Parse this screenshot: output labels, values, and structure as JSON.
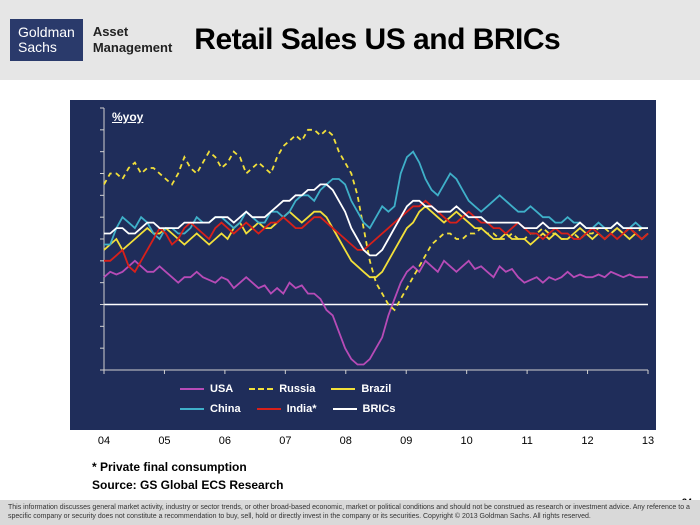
{
  "brand": {
    "logo_line1": "Goldman",
    "logo_line2": "Sachs",
    "subbrand_line1": "Asset",
    "subbrand_line2": "Management"
  },
  "title": "Retail Sales US and BRICs",
  "chart": {
    "type": "line",
    "background_color": "#1f2d5a",
    "unit_label": "%yoy",
    "ylim": [
      -12,
      36
    ],
    "ytick_step": 4,
    "x_categories": [
      "04",
      "05",
      "06",
      "07",
      "08",
      "09",
      "10",
      "11",
      "12",
      "13"
    ],
    "zero_line_color": "#ffffff",
    "tick_color": "#d0d0d0",
    "label_fontsize": 11,
    "line_width": 1.8,
    "series": [
      {
        "name": "USA",
        "color": "#b74bb7",
        "dash": null,
        "values": [
          5,
          6,
          5.5,
          6,
          7,
          8,
          7,
          6,
          6,
          7,
          6,
          5,
          4,
          5,
          5,
          6,
          5,
          4.5,
          4,
          5,
          4.5,
          3,
          4,
          5,
          4,
          3,
          3.5,
          2,
          3,
          2,
          4,
          3,
          3.5,
          2,
          2,
          1,
          -1,
          -2,
          -5,
          -8,
          -10,
          -11,
          -11,
          -10,
          -8,
          -6,
          -2,
          1,
          4,
          6,
          7,
          6,
          8,
          7,
          6,
          8,
          7,
          6,
          7,
          8,
          6.5,
          7,
          6,
          5,
          7,
          6,
          6.5,
          5,
          4,
          4.5,
          5,
          4,
          5,
          4.5,
          5,
          6,
          5,
          5.5,
          5,
          5,
          5.5,
          5,
          6,
          5.5,
          5,
          5.5,
          5,
          5,
          5
        ]
      },
      {
        "name": "Russia",
        "color": "#f2e03a",
        "dash": "5,4",
        "values": [
          22,
          24,
          24,
          23,
          25,
          26,
          24,
          25,
          25,
          24,
          23,
          22,
          24,
          27,
          25,
          24,
          26,
          28,
          27,
          25,
          26,
          28,
          27,
          24,
          25,
          26,
          25,
          24,
          27,
          29,
          30,
          31,
          30,
          32,
          32,
          31,
          32,
          31,
          28,
          26,
          24,
          20,
          14,
          8,
          4,
          2,
          0,
          -1,
          1,
          3,
          5,
          7,
          9,
          11,
          12,
          13,
          13,
          12,
          12,
          13,
          13,
          14,
          13,
          13,
          12,
          12,
          13,
          12,
          12,
          13,
          13,
          14,
          13,
          13,
          12,
          12,
          13,
          12,
          13,
          13,
          14,
          14,
          13,
          14,
          13,
          14,
          13,
          14,
          14
        ]
      },
      {
        "name": "Brazil",
        "color": "#f2e03a",
        "dash": null,
        "values": [
          10,
          11,
          12,
          10,
          11,
          12,
          13,
          14,
          13,
          13,
          14,
          13,
          12,
          11,
          12,
          13,
          12,
          11,
          12,
          13,
          12,
          14,
          15,
          13,
          14,
          15,
          14,
          14,
          15,
          16,
          17,
          16,
          15,
          16,
          17,
          17,
          16,
          14,
          12,
          10,
          8,
          7,
          6,
          5,
          5,
          6,
          8,
          10,
          12,
          14,
          15,
          17,
          18,
          17,
          16,
          15,
          16,
          17,
          16,
          15,
          14,
          14,
          13,
          12,
          12,
          13,
          12,
          12,
          12,
          11,
          12,
          13,
          12,
          13,
          12,
          12,
          13,
          14,
          13,
          12,
          13,
          12,
          13,
          14,
          13,
          12,
          13,
          12,
          13
        ]
      },
      {
        "name": "China",
        "color": "#3fb0c9",
        "dash": null,
        "values": [
          11,
          11,
          14,
          16,
          15,
          14,
          16,
          15,
          13,
          12,
          14,
          14,
          13,
          13,
          14,
          16,
          15,
          15,
          16,
          16,
          15,
          14,
          15,
          17,
          16,
          15,
          15,
          17,
          17,
          16,
          17,
          19,
          20,
          20,
          19,
          21,
          22,
          23,
          23,
          22,
          19,
          17,
          15,
          14,
          16,
          18,
          17,
          18,
          24,
          27,
          28,
          26,
          23,
          21,
          20,
          22,
          24,
          23,
          21,
          19,
          18,
          17,
          18,
          19,
          20,
          19,
          18,
          17,
          17,
          18,
          17,
          16,
          16,
          15,
          15,
          16,
          15,
          15,
          14,
          14,
          15,
          14,
          14,
          15,
          14,
          14,
          15,
          14,
          14
        ]
      },
      {
        "name": "India*",
        "color": "#d8201a",
        "dash": null,
        "values": [
          8,
          8,
          9,
          10,
          7,
          6,
          8,
          10,
          12,
          14,
          13,
          11,
          12,
          14,
          15,
          14,
          13,
          12,
          14,
          15,
          14,
          13,
          14,
          15,
          14,
          13,
          14,
          15,
          15,
          16,
          15,
          14,
          14,
          15,
          16,
          16,
          15,
          14,
          13,
          12,
          11,
          10,
          10,
          11,
          12,
          13,
          14,
          15,
          16,
          17,
          18,
          18,
          19,
          18,
          17,
          16,
          15,
          15,
          16,
          17,
          16,
          15,
          15,
          14,
          14,
          13,
          14,
          15,
          14,
          13,
          13,
          12,
          13,
          14,
          13,
          13,
          12,
          12,
          13,
          14,
          13,
          12,
          13,
          12,
          13,
          14,
          13,
          12,
          13
        ]
      },
      {
        "name": "BRICs",
        "color": "#ffffff",
        "dash": null,
        "values": [
          13,
          13,
          14,
          14,
          13,
          13,
          14,
          15,
          15,
          14,
          14,
          14,
          14,
          15,
          15,
          15,
          15,
          15,
          16,
          16,
          16,
          15,
          16,
          17,
          16,
          16,
          16,
          17,
          18,
          19,
          19,
          20,
          20,
          21,
          21,
          22,
          22,
          21,
          19,
          17,
          14,
          12,
          10,
          9,
          9,
          10,
          12,
          14,
          16,
          18,
          19,
          19,
          18,
          18,
          17,
          17,
          17,
          18,
          17,
          16,
          16,
          16,
          15,
          15,
          15,
          15,
          15,
          15,
          14,
          14,
          14,
          15,
          14,
          14,
          14,
          14,
          14,
          15,
          14,
          14,
          14,
          14,
          14,
          15,
          14,
          14,
          14,
          14,
          14
        ]
      }
    ],
    "legend_rows": [
      [
        {
          "series": 0,
          "label": "USA"
        },
        {
          "series": 1,
          "label": "Russia"
        },
        {
          "series": 2,
          "label": "Brazil"
        }
      ],
      [
        {
          "series": 3,
          "label": "China"
        },
        {
          "series": 4,
          "label": "India*"
        },
        {
          "series": 5,
          "label": "BRICs"
        }
      ]
    ]
  },
  "footnote1": "* Private final consumption",
  "footnote2": "Source: GS Global ECS Research",
  "disclaimer": "This information discusses general market activity, industry or sector trends, or other broad-based economic, market or political conditions and should not be construed as research or investment advice. Any reference to a specific company or security does not constitute a recommendation to buy, sell, hold or directly invest in the company or its securities. Copyright © 2013 Goldman Sachs. All rights reserved.",
  "page_number": "34"
}
